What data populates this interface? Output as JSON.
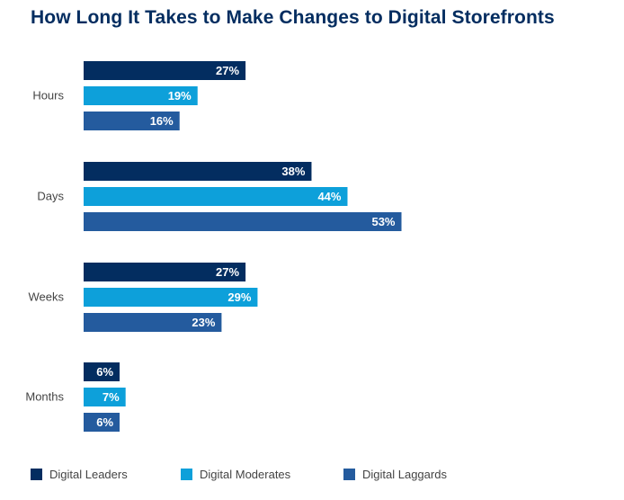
{
  "chart_data": {
    "type": "bar",
    "orientation": "horizontal",
    "title": "How Long It Takes to Make Changes to Digital Storefronts",
    "categories": [
      "Hours",
      "Days",
      "Weeks",
      "Months"
    ],
    "series": [
      {
        "name": "Digital Leaders",
        "color": "#032d60",
        "values": [
          27,
          38,
          27,
          6
        ],
        "labels": [
          "27%",
          "38%",
          "27%",
          "6%"
        ]
      },
      {
        "name": "Digital Moderates",
        "color": "#0da0da",
        "values": [
          19,
          44,
          29,
          7
        ],
        "labels": [
          "19%",
          "44%",
          "29%",
          "7%"
        ]
      },
      {
        "name": "Digital Laggards",
        "color": "#245b9e",
        "values": [
          16,
          53,
          23,
          6
        ],
        "labels": [
          "16%",
          "53%",
          "23%",
          "6%"
        ]
      }
    ],
    "value_unit": "%",
    "xlim": [
      0,
      100
    ],
    "xlabel": "",
    "ylabel": "",
    "grid": false,
    "legend_position": "bottom"
  }
}
